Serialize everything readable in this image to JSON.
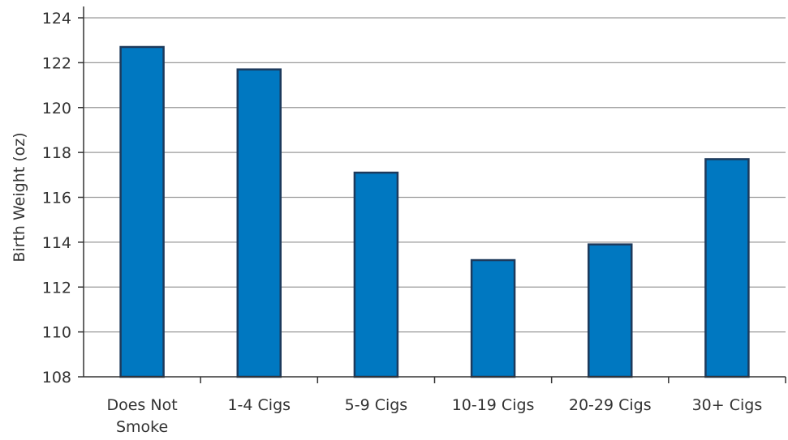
{
  "chart_data": {
    "type": "bar",
    "title": "",
    "xlabel": "",
    "ylabel": "Birth Weight (oz)",
    "ylim": [
      108,
      124
    ],
    "ytick_step": 2,
    "grid": "horizontal",
    "categories": [
      [
        "Does Not",
        "Smoke"
      ],
      [
        "1-4 Cigs"
      ],
      [
        "5-9 Cigs"
      ],
      [
        "10-19 Cigs"
      ],
      [
        "20-29 Cigs"
      ],
      [
        "30+ Cigs"
      ]
    ],
    "values": [
      122.7,
      121.7,
      117.1,
      113.2,
      113.9,
      117.7
    ],
    "colors": {
      "bar_fill": "#0078c1",
      "bar_stroke": "#1d3a5c",
      "grid": "#9a9a9a",
      "axis": "#333333"
    }
  }
}
